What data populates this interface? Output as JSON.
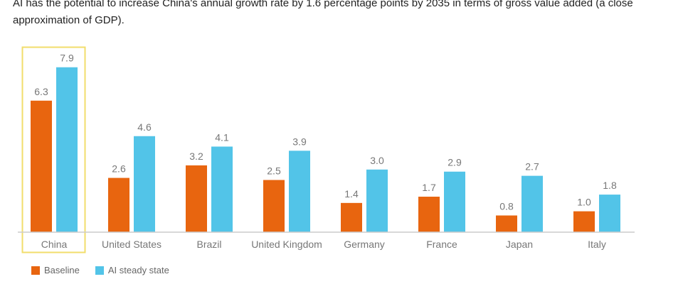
{
  "caption": "AI has the potential to increase China's annual growth rate by 1.6 percentage points by 2035 in terms of gross value added (a close approximation of GDP).",
  "colors": {
    "baseline": "#E8650F",
    "ai": "#52C4E8",
    "highlight": "#F2DE6B",
    "axis": "#CCCCCC",
    "label": "#777777"
  },
  "chart_data": {
    "type": "bar",
    "categories": [
      "China",
      "United States",
      "Brazil",
      "United Kingdom",
      "Germany",
      "France",
      "Japan",
      "Italy"
    ],
    "series": [
      {
        "name": "Baseline",
        "values": [
          6.3,
          2.6,
          3.2,
          2.5,
          1.4,
          1.7,
          0.8,
          1.0
        ]
      },
      {
        "name": "AI steady state",
        "values": [
          7.9,
          4.6,
          4.1,
          3.9,
          3.0,
          2.9,
          2.7,
          1.8
        ]
      }
    ],
    "highlight_category": "China",
    "ylim": [
      0,
      8
    ],
    "grid": false,
    "legend_position": "bottom-left"
  }
}
